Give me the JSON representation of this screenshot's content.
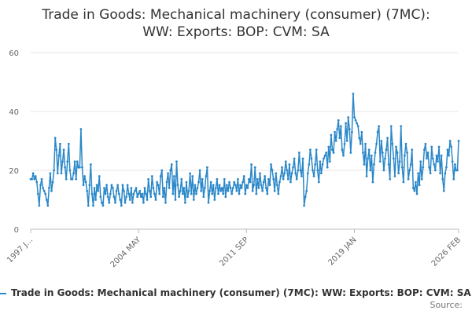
{
  "chart_data": {
    "type": "line",
    "title": "Trade in Goods: Mechanical machinery (consumer) (7MC): WW: Exports: BOP: CVM: SA",
    "source": "Source:",
    "categories": [
      "1997 J...",
      null,
      null,
      null,
      null,
      null,
      null,
      null,
      null,
      null,
      null,
      null,
      null,
      null,
      null,
      null,
      null,
      null,
      null,
      null,
      null,
      null,
      null,
      null,
      null,
      null,
      null,
      null,
      null,
      null,
      null,
      null,
      null,
      null,
      null,
      null,
      null,
      null,
      null,
      null,
      null,
      null,
      null,
      null,
      null,
      null,
      null,
      null,
      null,
      null,
      null,
      null,
      null,
      null,
      null,
      null,
      null,
      null,
      null,
      null,
      null,
      null,
      null,
      null,
      null,
      null,
      null,
      null,
      null,
      null,
      null,
      null,
      null,
      null,
      null,
      null,
      null,
      null,
      null,
      null,
      null,
      null,
      null,
      null,
      null,
      null,
      null,
      null,
      "2004 MAY",
      null,
      null,
      null,
      null,
      null,
      null,
      null,
      null,
      null,
      null,
      null,
      null,
      null,
      null,
      null,
      null,
      null,
      null,
      null,
      null,
      null,
      null,
      null,
      null,
      null,
      null,
      null,
      null,
      null,
      null,
      null,
      null,
      null,
      null,
      null,
      null,
      null,
      null,
      null,
      null,
      null,
      null,
      null,
      null,
      null,
      null,
      null,
      null,
      null,
      null,
      null,
      null,
      null,
      null,
      null,
      null,
      null,
      null,
      null,
      null,
      null,
      null,
      null,
      null,
      null,
      null,
      null,
      null,
      null,
      null,
      null,
      null,
      null,
      null,
      null,
      null,
      null,
      null,
      null,
      null,
      null,
      null,
      null,
      null,
      null,
      null,
      null,
      "2011 SEP",
      null,
      null,
      null,
      null,
      null,
      null,
      null,
      null,
      null,
      null,
      null,
      null,
      null,
      null,
      null,
      null,
      null,
      null,
      null,
      null,
      null,
      null,
      null,
      null,
      null,
      null,
      null,
      null,
      null,
      null,
      null,
      null,
      null,
      null,
      null,
      null,
      null,
      null,
      null,
      null,
      null,
      null,
      null,
      null,
      null,
      null,
      null,
      null,
      null,
      null,
      null,
      null,
      null,
      null,
      null,
      null,
      null,
      null,
      null,
      null,
      null,
      null,
      null,
      null,
      null,
      null,
      null,
      null,
      null,
      null,
      null,
      null,
      null,
      null,
      null,
      null,
      null,
      null,
      null,
      null,
      null,
      null,
      null,
      null,
      null,
      null,
      null,
      "2019 JAN",
      null,
      null,
      null,
      null,
      null,
      null,
      null,
      null,
      null,
      null,
      null,
      null,
      null,
      null,
      null,
      null,
      null,
      null,
      null,
      null,
      null,
      null,
      null,
      null,
      null,
      null,
      null,
      null,
      null,
      null,
      null,
      null,
      null,
      null,
      null,
      null,
      null,
      null,
      null,
      null,
      null,
      null,
      null,
      null,
      null,
      null,
      null,
      null,
      null,
      null,
      null,
      null,
      null,
      null,
      null,
      null,
      null,
      null,
      null,
      null,
      null,
      null,
      null,
      null,
      null,
      null,
      null,
      null,
      null,
      null,
      null,
      null,
      null,
      null,
      null,
      null,
      null,
      null,
      null,
      null,
      null,
      null,
      null,
      null,
      "2026 FEB"
    ],
    "series": [
      {
        "name": "Trade in Goods: Mechanical machinery (consumer) (7MC): WW: Exports: BOP: CVM: SA",
        "color": "#2a87c8",
        "values": [
          17,
          17,
          19,
          17,
          18,
          16,
          12,
          8,
          15,
          17,
          14,
          13,
          12,
          10,
          8,
          14,
          19,
          13,
          16,
          20,
          31,
          27,
          19,
          25,
          29,
          19,
          23,
          27,
          21,
          17,
          23,
          29,
          20,
          17,
          17,
          19,
          23,
          17,
          23,
          21,
          21,
          34,
          21,
          15,
          18,
          16,
          13,
          8,
          15,
          22,
          12,
          8,
          14,
          10,
          15,
          13,
          18,
          11,
          9,
          8,
          14,
          12,
          15,
          11,
          9,
          12,
          15,
          14,
          11,
          9,
          13,
          15,
          12,
          10,
          8,
          15,
          13,
          9,
          11,
          15,
          12,
          10,
          14,
          9,
          12,
          13,
          14,
          11,
          12,
          13,
          11,
          12,
          9,
          14,
          12,
          10,
          17,
          13,
          11,
          18,
          14,
          12,
          10,
          16,
          15,
          12,
          18,
          20,
          11,
          14,
          9,
          16,
          19,
          14,
          20,
          22,
          12,
          18,
          10,
          23,
          15,
          11,
          13,
          17,
          12,
          14,
          9,
          16,
          11,
          13,
          19,
          12,
          18,
          10,
          15,
          12,
          14,
          16,
          20,
          13,
          17,
          11,
          14,
          18,
          21,
          9,
          13,
          16,
          12,
          15,
          10,
          14,
          17,
          12,
          15,
          13,
          14,
          12,
          17,
          11,
          15,
          13,
          16,
          14,
          12,
          14,
          16,
          15,
          13,
          17,
          12,
          15,
          14,
          16,
          18,
          12,
          15,
          14,
          17,
          16,
          22,
          13,
          15,
          21,
          12,
          17,
          14,
          19,
          15,
          13,
          16,
          18,
          14,
          12,
          17,
          15,
          22,
          20,
          17,
          13,
          19,
          15,
          12,
          16,
          18,
          21,
          17,
          19,
          23,
          20,
          17,
          22,
          16,
          19,
          21,
          24,
          19,
          17,
          20,
          26,
          20,
          18,
          24,
          8,
          11,
          13,
          19,
          22,
          27,
          24,
          20,
          18,
          22,
          27,
          20,
          16,
          23,
          19,
          22,
          24,
          25,
          26,
          21,
          28,
          23,
          32,
          27,
          26,
          33,
          30,
          34,
          37,
          31,
          35,
          27,
          25,
          29,
          36,
          30,
          38,
          34,
          26,
          33,
          46,
          38,
          37,
          36,
          35,
          31,
          29,
          33,
          26,
          22,
          29,
          18,
          24,
          27,
          20,
          25,
          16,
          22,
          26,
          29,
          33,
          35,
          23,
          30,
          26,
          20,
          24,
          27,
          31,
          22,
          17,
          35,
          29,
          24,
          18,
          28,
          26,
          19,
          23,
          35,
          21,
          16,
          25,
          29,
          26,
          17,
          20,
          22,
          27,
          14,
          13,
          16,
          12,
          19,
          15,
          23,
          17,
          21,
          27,
          29,
          24,
          26,
          21,
          19,
          28,
          24,
          22,
          20,
          25,
          23,
          28,
          19,
          25,
          17,
          13,
          19,
          21,
          27,
          25,
          30,
          28,
          23,
          17,
          22,
          20,
          20,
          30
        ]
      }
    ],
    "ylim": [
      0,
      60
    ],
    "yticks": [
      0,
      20,
      40,
      60
    ],
    "grid": true
  }
}
